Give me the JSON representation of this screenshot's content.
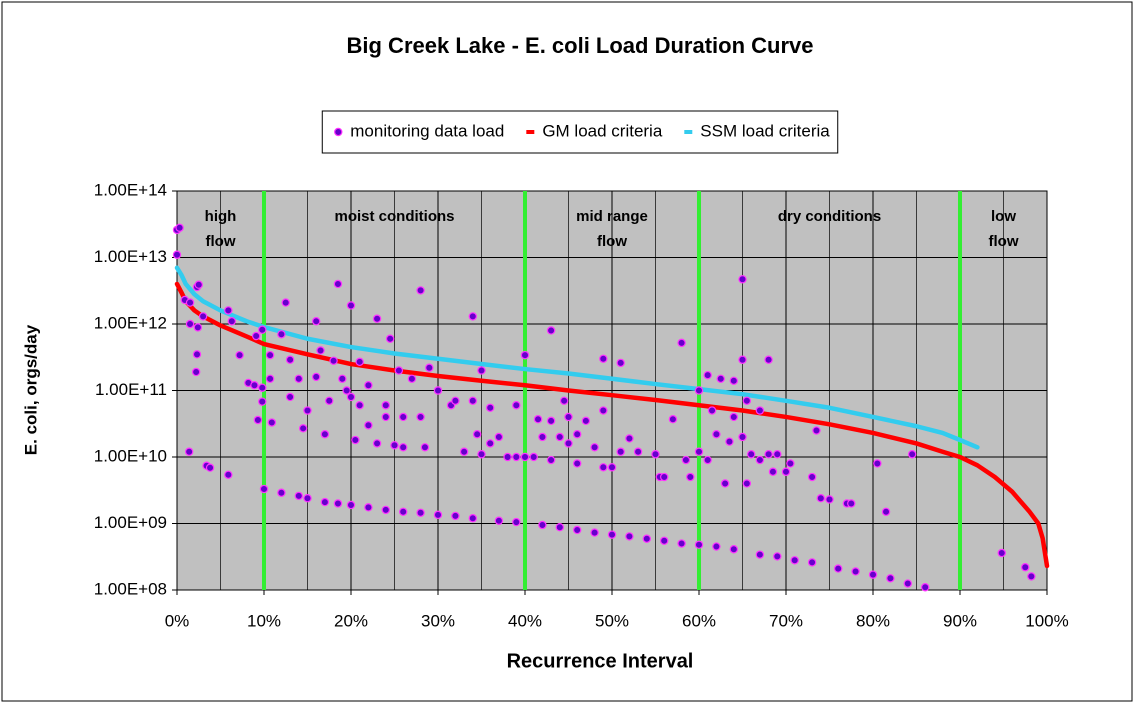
{
  "chart_data": {
    "type": "scatter",
    "title": "Big Creek Lake - E. coli Load Duration Curve",
    "x_label": "Recurrence Interval",
    "y_label": "E. coli, orgs/day",
    "log_y": true,
    "grid": true,
    "plot_background": "#c0c0c0",
    "legend_position": "top",
    "xlim": [
      0,
      100
    ],
    "xticks": [
      {
        "value": 0,
        "label": "0%"
      },
      {
        "value": 10,
        "label": "10%"
      },
      {
        "value": 20,
        "label": "20%"
      },
      {
        "value": 30,
        "label": "30%"
      },
      {
        "value": 40,
        "label": "40%"
      },
      {
        "value": 50,
        "label": "50%"
      },
      {
        "value": 60,
        "label": "60%"
      },
      {
        "value": 70,
        "label": "70%"
      },
      {
        "value": 80,
        "label": "80%"
      },
      {
        "value": 90,
        "label": "90%"
      },
      {
        "value": 100,
        "label": "100%"
      }
    ],
    "ylim": [
      100000000,
      100000000000000
    ],
    "yticks": [
      {
        "value": 100000000,
        "label": "1.00E+08"
      },
      {
        "value": 1000000000,
        "label": "1.00E+09"
      },
      {
        "value": 10000000000,
        "label": "1.00E+10"
      },
      {
        "value": 100000000000,
        "label": "1.00E+11"
      },
      {
        "value": 1000000000000,
        "label": "1.00E+12"
      },
      {
        "value": 10000000000000,
        "label": "1.00E+13"
      },
      {
        "value": 100000000000000,
        "label": "1.00E+14"
      }
    ],
    "zone_boundaries": [
      10,
      40,
      60,
      90
    ],
    "zone_line_color": "#33ee33",
    "zones": [
      [
        "high",
        "flow"
      ],
      [
        "moist conditions"
      ],
      [
        "mid range",
        "flow"
      ],
      [
        "dry conditions"
      ],
      [
        "low",
        "flow"
      ]
    ],
    "series": [
      {
        "name": "monitoring data load",
        "kind": "points",
        "color": "#6600cc",
        "edge_color": "#ff33ff",
        "x": [
          0,
          0.3,
          0,
          0.9,
          1.5,
          2.3,
          2.5,
          1.5,
          2.4,
          3.0,
          2.3,
          2.2,
          1.4,
          3.4,
          3.8,
          5.9,
          5.9,
          6.3,
          7.2,
          8.2,
          8.9,
          9.1,
          9.8,
          9.3,
          9.8,
          9.8,
          10.7,
          10.7,
          10.9,
          10,
          12,
          14,
          15,
          17,
          18.5,
          20,
          22,
          24,
          26,
          28,
          30,
          32,
          34,
          37,
          39,
          42,
          44,
          46,
          48,
          50,
          52,
          54,
          56,
          58,
          60,
          62,
          64,
          67,
          69,
          71,
          73,
          76,
          78,
          80,
          82,
          84,
          86,
          94.8,
          97.5,
          98.2,
          12.5,
          12,
          13,
          14,
          13,
          14.5,
          15,
          16,
          16,
          16.5,
          17,
          17.5,
          18,
          18.5,
          19,
          19.5,
          20,
          20,
          20.5,
          21,
          21,
          22,
          22,
          23,
          23,
          24,
          24,
          24.5,
          25,
          25.5,
          26,
          26,
          27,
          28,
          28,
          28.5,
          29,
          30,
          31.5,
          32,
          33,
          34,
          34,
          34.5,
          35,
          35,
          36,
          36,
          37,
          38,
          39,
          39,
          40,
          40,
          41,
          41.5,
          42,
          43,
          43,
          43,
          44,
          44.5,
          45,
          45,
          46,
          46,
          47,
          48,
          49,
          49,
          49,
          50,
          51,
          51,
          52,
          53,
          55,
          55.5,
          56,
          57,
          58,
          58.5,
          59,
          60,
          60,
          61,
          61,
          61.5,
          62,
          62.5,
          63,
          63.5,
          64,
          64,
          65,
          65,
          65,
          65.5,
          65.5,
          66,
          67,
          67,
          68,
          68,
          68.5,
          69,
          70,
          70.5,
          73,
          73.5,
          74,
          75,
          77,
          77.5,
          80.5,
          81.5,
          84.5
        ],
        "values": [
          26000000000000,
          28000000000000,
          11000000000000,
          2300000000000,
          2100000000000,
          3600000000000,
          3900000000000,
          1000000000000,
          890000000000,
          1300000000000,
          350000000000,
          190000000000,
          12000000000,
          7400000000,
          6900000000,
          5400000000,
          1600000000000,
          1100000000000,
          340000000000,
          130000000000,
          120000000000,
          660000000000,
          820000000000,
          36000000000,
          68000000000,
          110000000000,
          340000000000,
          150000000000,
          33000000000,
          3300000000,
          2900000000,
          2600000000,
          2400000000,
          2100000000,
          2000000000,
          1900000000,
          1750000000,
          1600000000,
          1500000000,
          1450000000,
          1350000000,
          1300000000,
          1200000000,
          1100000000,
          1050000000,
          950000000,
          880000000,
          800000000,
          730000000,
          680000000,
          640000000,
          590000000,
          550000000,
          500000000,
          480000000,
          450000000,
          410000000,
          340000000,
          320000000,
          280000000,
          260000000,
          210000000,
          190000000,
          170000000,
          150000000,
          125000000,
          110000000,
          360000000,
          220000000,
          160000000,
          2100000000000,
          700000000000,
          290000000000,
          150000000000,
          80000000000,
          27000000000,
          50000000000,
          1100000000000,
          160000000000,
          400000000000,
          22000000000,
          70000000000,
          280000000000,
          4000000000000,
          150000000000,
          100000000000,
          1900000000000,
          80000000000,
          18000000000,
          270000000000,
          60000000000,
          120000000000,
          30000000000,
          1200000000000,
          16000000000,
          60000000000,
          40000000000,
          600000000000,
          15000000000,
          200000000000,
          14000000000,
          40000000000,
          150000000000,
          3200000000000,
          40000000000,
          14000000000,
          220000000000,
          100000000000,
          60000000000,
          70000000000,
          12000000000,
          1300000000000,
          70000000000,
          22000000000,
          200000000000,
          11000000000,
          16000000000,
          55000000000,
          20000000000,
          10000000000,
          10000000000,
          60000000000,
          340000000000,
          10000000000,
          10000000000,
          37000000000,
          20000000000,
          800000000000,
          35000000000,
          9000000000,
          20000000000,
          70000000000,
          40000000000,
          16000000000,
          8000000000,
          22000000000,
          35000000000,
          14000000000,
          7000000000,
          300000000000,
          50000000000,
          7000000000,
          260000000000,
          12000000000,
          19000000000,
          12000000000,
          11000000000,
          5000000000,
          5000000000,
          37000000000,
          520000000000,
          9000000000,
          5000000000,
          100000000000,
          12000000000,
          9000000000,
          170000000000,
          50000000000,
          22000000000,
          150000000000,
          4000000000,
          17000000000,
          40000000000,
          140000000000,
          4700000000000,
          290000000000,
          20000000000,
          70000000000,
          4000000000,
          11000000000,
          50000000000,
          9000000000,
          290000000000,
          11000000000,
          6000000000,
          11000000000,
          6000000000,
          8000000000,
          5000000000,
          25000000000,
          2400000000,
          2300000000,
          2000000000,
          2000000000,
          8000000000,
          1500000000,
          11000000000
        ]
      },
      {
        "name": "GM load criteria",
        "kind": "line",
        "color": "#ff0000",
        "x": [
          0,
          0.5,
          1,
          2,
          3,
          5,
          8,
          10,
          15,
          20,
          25,
          30,
          35,
          40,
          45,
          50,
          55,
          60,
          65,
          70,
          75,
          80,
          85,
          88,
          90,
          92,
          94,
          96,
          98,
          99,
          99.5,
          100
        ],
        "values": [
          4000000000000,
          3000000000000,
          2200000000000,
          1600000000000,
          1300000000000,
          950000000000,
          650000000000,
          500000000000,
          350000000000,
          250000000000,
          200000000000,
          165000000000,
          140000000000,
          120000000000,
          100000000000,
          85000000000,
          72000000000,
          60000000000,
          50000000000,
          40000000000,
          31000000000,
          23000000000,
          16000000000,
          12000000000,
          10000000000,
          7500000000,
          5000000000,
          3000000000,
          1500000000,
          1000000000,
          600000000,
          230000000
        ]
      },
      {
        "name": "SSM load criteria",
        "kind": "line",
        "color": "#33ccee",
        "x": [
          0,
          0.5,
          1,
          2,
          3,
          5,
          8,
          10,
          15,
          20,
          25,
          30,
          35,
          40,
          45,
          50,
          55,
          60,
          65,
          70,
          75,
          80,
          85,
          88,
          90,
          92
        ],
        "values": [
          7000000000000,
          5500000000000,
          4000000000000,
          2800000000000,
          2200000000000,
          1600000000000,
          1100000000000,
          900000000000,
          600000000000,
          450000000000,
          360000000000,
          300000000000,
          250000000000,
          210000000000,
          180000000000,
          150000000000,
          125000000000,
          105000000000,
          88000000000,
          70000000000,
          55000000000,
          40000000000,
          29000000000,
          23000000000,
          18000000000,
          14000000000
        ]
      }
    ]
  }
}
